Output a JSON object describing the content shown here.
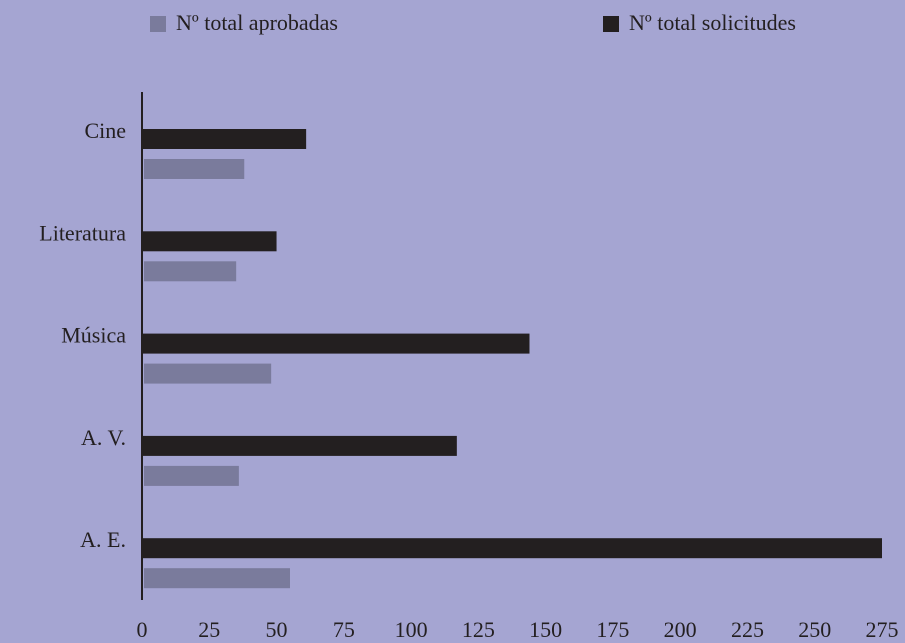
{
  "chart_data": {
    "type": "barh",
    "categories": [
      "Cine",
      "Literatura",
      "Música",
      "A. V.",
      "A. E."
    ],
    "series": [
      {
        "name": "Nº total aprobadas",
        "color": "#7a7b9c",
        "values": [
          38,
          35,
          48,
          36,
          55
        ]
      },
      {
        "name": "Nº total solicitudes",
        "color": "#231f20",
        "values": [
          61,
          50,
          144,
          117,
          275
        ]
      }
    ],
    "xlim": [
      0,
      275
    ],
    "xticks": [
      0,
      25,
      50,
      75,
      100,
      125,
      150,
      175,
      200,
      225,
      250,
      275
    ],
    "grid": false
  }
}
